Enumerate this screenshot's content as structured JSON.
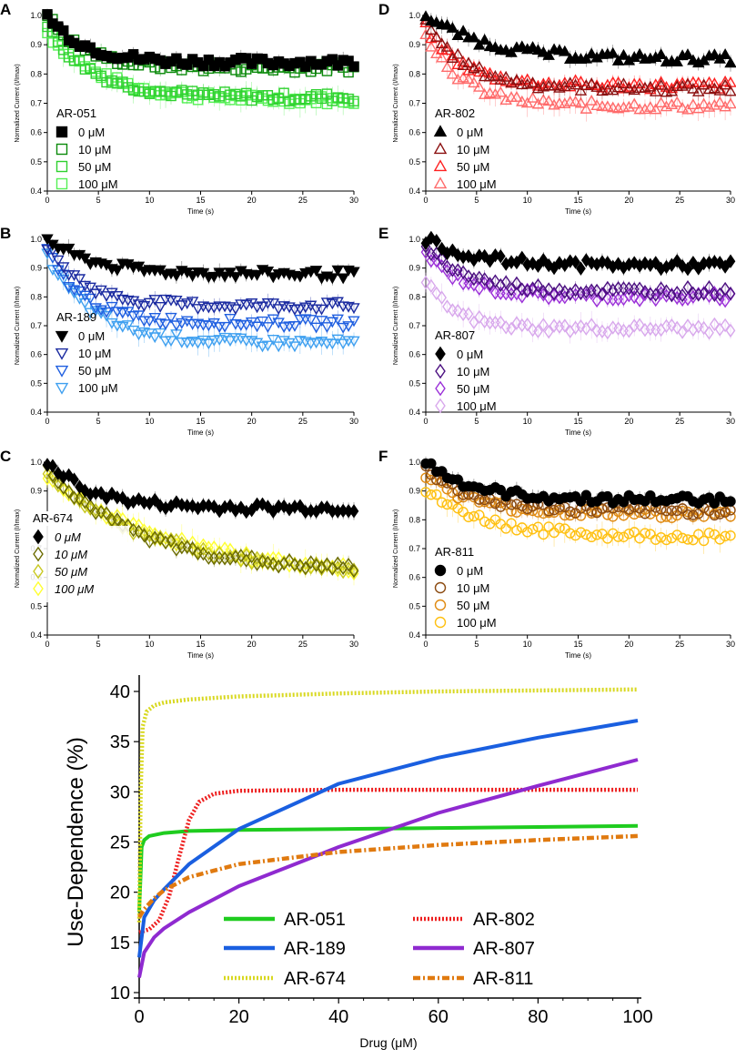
{
  "figure": {
    "panels": [
      {
        "id": "A",
        "compound": "AR-051",
        "colors": [
          "#000000",
          "#0b8a0b",
          "#2fd12f",
          "#55f055"
        ],
        "filled_first": true,
        "marker": "square"
      },
      {
        "id": "D",
        "compound": "AR-802",
        "colors": [
          "#000000",
          "#8b1010",
          "#ff2020",
          "#ff6b6b"
        ],
        "filled_first": true,
        "marker": "triangle-up"
      },
      {
        "id": "B",
        "compound": "AR-189",
        "colors": [
          "#000000",
          "#1a2aa0",
          "#1f5fe0",
          "#3fa0f0"
        ],
        "filled_first": true,
        "marker": "triangle-down"
      },
      {
        "id": "E",
        "compound": "AR-807",
        "colors": [
          "#000000",
          "#4b0f80",
          "#9b30d8",
          "#d8a8ec"
        ],
        "filled_first": true,
        "marker": "diamond"
      },
      {
        "id": "C",
        "compound": "AR-674",
        "colors": [
          "#000000",
          "#6b6b00",
          "#c8c820",
          "#ffff30"
        ],
        "filled_first": true,
        "marker": "diamond"
      },
      {
        "id": "F",
        "compound": "AR-811",
        "colors": [
          "#000000",
          "#8b4a10",
          "#e08a10",
          "#ffc010"
        ],
        "filled_first": true,
        "marker": "circle"
      }
    ],
    "legend_concentrations": [
      "0 μM",
      "10 μM",
      "50 μM",
      "100 μM"
    ],
    "c_legend_concentrations": [
      "0 μM",
      "10 μM",
      "50 μM",
      "100 μM"
    ],
    "panel_xlabel": "Time (s)",
    "panel_ylabel": "Normalized Current (I/Imax)",
    "panel_xticks": [
      "0",
      "5",
      "10",
      "15",
      "20",
      "25",
      "30"
    ],
    "panel_yticks": [
      "0.4",
      "0.5",
      "0.6",
      "0.7",
      "0.8",
      "0.9",
      "1.0"
    ]
  },
  "chart_data": [
    {
      "type": "scatter",
      "title": "A",
      "legend_title": "AR-051",
      "xlabel": "Time (s)",
      "ylabel": "Normalized Current (I/Imax)",
      "xlim": [
        0,
        30
      ],
      "ylim": [
        0.4,
        1.0
      ],
      "series": [
        {
          "name": "0 μM",
          "start": 1.0,
          "end": 0.84,
          "rate": 0.12
        },
        {
          "name": "10 μM",
          "start": 1.0,
          "end": 0.82,
          "rate": 0.12
        },
        {
          "name": "50 μM",
          "start": 0.96,
          "end": 0.72,
          "rate": 0.15
        },
        {
          "name": "100 μM",
          "start": 0.94,
          "end": 0.71,
          "rate": 0.18
        }
      ]
    },
    {
      "type": "scatter",
      "title": "D",
      "legend_title": "AR-802",
      "xlabel": "Time (s)",
      "ylabel": "Normalized Current (I/Imax)",
      "xlim": [
        0,
        30
      ],
      "ylim": [
        0.4,
        1.0
      ],
      "series": [
        {
          "name": "0 μM",
          "start": 1.0,
          "end": 0.85,
          "rate": 0.2
        },
        {
          "name": "10 μM",
          "start": 0.98,
          "end": 0.75,
          "rate": 0.13
        },
        {
          "name": "50 μM",
          "start": 0.96,
          "end": 0.76,
          "rate": 0.12
        },
        {
          "name": "100 μM",
          "start": 0.94,
          "end": 0.69,
          "rate": 0.12
        }
      ]
    },
    {
      "type": "scatter",
      "title": "B",
      "legend_title": "AR-189",
      "xlabel": "Time (s)",
      "ylabel": "Normalized Current (I/Imax)",
      "xlim": [
        0,
        30
      ],
      "ylim": [
        0.4,
        1.0
      ],
      "series": [
        {
          "name": "0 μM",
          "start": 1.0,
          "end": 0.88,
          "rate": 0.15
        },
        {
          "name": "10 μM",
          "start": 0.98,
          "end": 0.77,
          "rate": 0.12
        },
        {
          "name": "50 μM",
          "start": 0.96,
          "end": 0.71,
          "rate": 0.12
        },
        {
          "name": "100 μM",
          "start": 0.94,
          "end": 0.64,
          "rate": 0.15
        }
      ]
    },
    {
      "type": "scatter",
      "title": "E",
      "legend_title": "AR-807",
      "xlabel": "Time (s)",
      "ylabel": "Normalized Current (I/Imax)",
      "xlim": [
        0,
        30
      ],
      "ylim": [
        0.4,
        1.0
      ],
      "series": [
        {
          "name": "0 μM",
          "start": 1.0,
          "end": 0.91,
          "rate": 0.15
        },
        {
          "name": "10 μM",
          "start": 0.98,
          "end": 0.82,
          "rate": 0.13
        },
        {
          "name": "50 μM",
          "start": 0.95,
          "end": 0.8,
          "rate": 0.13
        },
        {
          "name": "100 μM",
          "start": 0.85,
          "end": 0.69,
          "rate": 0.1
        }
      ]
    },
    {
      "type": "scatter",
      "title": "C",
      "legend_title": "AR-674",
      "xlabel": "Time (s)",
      "ylabel": "Normalized Current (I/Imax)",
      "xlim": [
        0,
        30
      ],
      "ylim": [
        0.4,
        1.0
      ],
      "series": [
        {
          "name": "0 μM",
          "start": 1.0,
          "end": 0.84,
          "rate": 0.15
        },
        {
          "name": "10 μM",
          "start": 0.98,
          "end": 0.62,
          "rate": 0.3
        },
        {
          "name": "50 μM",
          "start": 0.96,
          "end": 0.61,
          "rate": 0.35
        },
        {
          "name": "100 μM",
          "start": 0.94,
          "end": 0.59,
          "rate": 0.45
        }
      ]
    },
    {
      "type": "scatter",
      "title": "F",
      "legend_title": "AR-811",
      "xlabel": "Time (s)",
      "ylabel": "Normalized Current (I/Imax)",
      "xlim": [
        0,
        30
      ],
      "ylim": [
        0.4,
        1.0
      ],
      "series": [
        {
          "name": "0 μM",
          "start": 1.0,
          "end": 0.87,
          "rate": 0.15
        },
        {
          "name": "10 μM",
          "start": 0.98,
          "end": 0.83,
          "rate": 0.15
        },
        {
          "name": "50 μM",
          "start": 0.96,
          "end": 0.82,
          "rate": 0.15
        },
        {
          "name": "100 μM",
          "start": 0.9,
          "end": 0.74,
          "rate": 0.2
        }
      ]
    },
    {
      "type": "line",
      "title": "",
      "xlabel": "Drug (μM)",
      "ylabel": "Use-Dependence (%)",
      "xlim": [
        0,
        100
      ],
      "ylim": [
        10,
        40
      ],
      "xticks": [
        0,
        20,
        40,
        60,
        80,
        100
      ],
      "yticks": [
        10,
        15,
        20,
        25,
        30,
        35,
        40
      ],
      "legend": "bottom-right",
      "series": [
        {
          "name": "AR-051",
          "color": "#1fcc1f",
          "dash": "solid",
          "x": [
            0,
            0.5,
            1,
            2,
            5,
            10,
            20,
            40,
            60,
            80,
            100
          ],
          "y": [
            18,
            24.5,
            25.2,
            25.6,
            25.9,
            26.1,
            26.2,
            26.3,
            26.4,
            26.5,
            26.6
          ]
        },
        {
          "name": "AR-802",
          "color": "#ee2020",
          "dash": "dotted",
          "x": [
            0,
            2,
            4,
            6,
            8,
            10,
            12,
            15,
            20,
            40,
            60,
            80,
            100
          ],
          "y": [
            16,
            16.3,
            17.2,
            19.6,
            23.5,
            27.2,
            29.0,
            29.8,
            30.1,
            30.2,
            30.2,
            30.2,
            30.2
          ]
        },
        {
          "name": "AR-189",
          "color": "#1a5fe0",
          "dash": "solid",
          "x": [
            0,
            1,
            3,
            5,
            10,
            20,
            40,
            60,
            80,
            100
          ],
          "y": [
            13.5,
            17.5,
            19.2,
            20.3,
            22.8,
            26.3,
            30.8,
            33.4,
            35.4,
            37.1
          ]
        },
        {
          "name": "AR-807",
          "color": "#8f2ad0",
          "dash": "solid",
          "x": [
            0,
            1,
            3,
            5,
            10,
            20,
            40,
            60,
            80,
            100
          ],
          "y": [
            11.5,
            14.0,
            15.5,
            16.4,
            18.0,
            20.6,
            24.5,
            27.9,
            30.6,
            33.2
          ]
        },
        {
          "name": "AR-674",
          "color": "#d8d820",
          "dash": "dotted",
          "x": [
            0,
            0.3,
            0.7,
            1.5,
            3,
            5,
            10,
            20,
            40,
            60,
            80,
            100
          ],
          "y": [
            17,
            30,
            36.5,
            38.0,
            38.6,
            38.9,
            39.2,
            39.5,
            39.8,
            40.0,
            40.1,
            40.2
          ]
        },
        {
          "name": "AR-811",
          "color": "#e07a10",
          "dash": "dashdot",
          "x": [
            0,
            1,
            3,
            5,
            10,
            20,
            40,
            60,
            80,
            100
          ],
          "y": [
            17.5,
            18.3,
            19.4,
            20.2,
            21.5,
            22.8,
            24.0,
            24.7,
            25.2,
            25.6
          ]
        }
      ]
    }
  ]
}
